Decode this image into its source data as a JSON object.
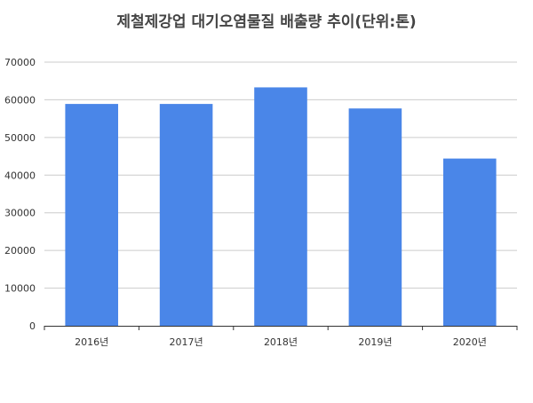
{
  "chart_data": {
    "type": "bar",
    "title": "제철제강업 대기오염물질 배출량 추이(단위:톤)",
    "categories": [
      "2016년",
      "2017년",
      "2018년",
      "2019년",
      "2020년"
    ],
    "values": [
      58900,
      58900,
      63300,
      57700,
      44400
    ],
    "xlabel": "",
    "ylabel": "",
    "ylim": [
      0,
      70000
    ],
    "yticks": [
      0,
      10000,
      20000,
      30000,
      40000,
      50000,
      60000,
      70000
    ],
    "grid": true,
    "legend": "none",
    "bar_color": "#4a86e8"
  }
}
